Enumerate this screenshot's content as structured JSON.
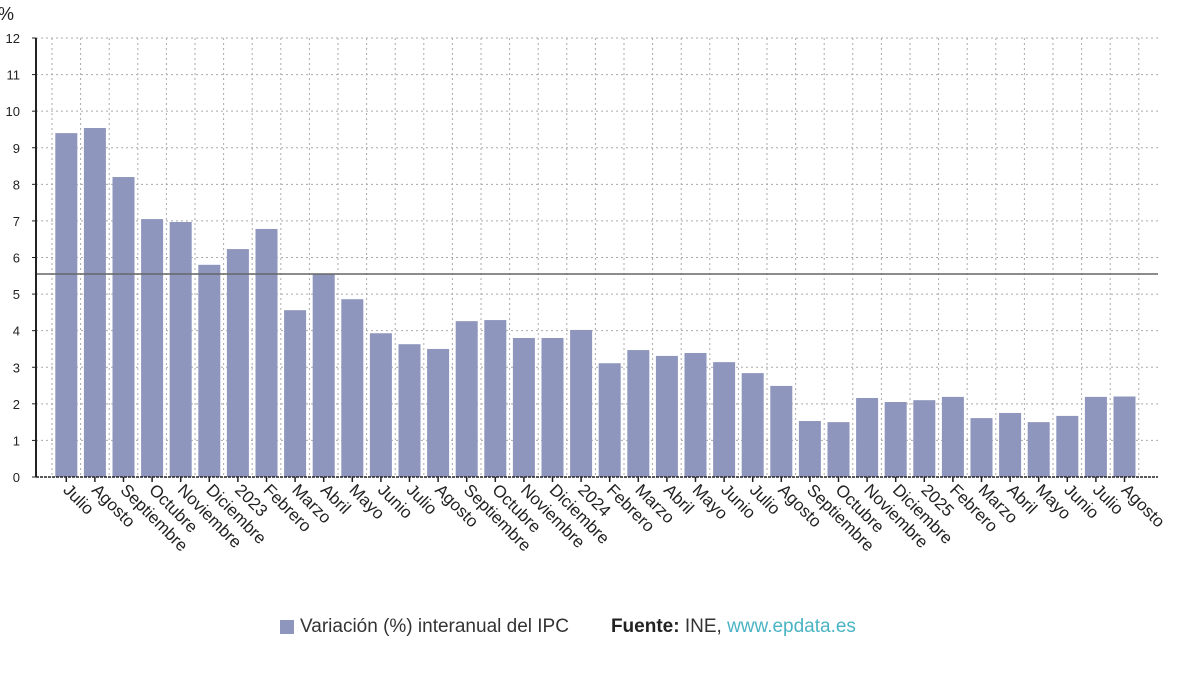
{
  "chart_data": {
    "type": "bar",
    "ylabel": "%",
    "ylim": [
      0,
      12
    ],
    "yticks": [
      0,
      1,
      2,
      3,
      4,
      5,
      6,
      7,
      8,
      9,
      10,
      11,
      12
    ],
    "grid": true,
    "legend_position": "bottom",
    "reference_line": 5.55,
    "bar_color": "#8e96bd",
    "categories": [
      "Julio",
      "Agosto",
      "Septiembre",
      "Octubre",
      "Noviembre",
      "Diciembre",
      "2023",
      "Febrero",
      "Marzo",
      "Abril",
      "Mayo",
      "Junio",
      "Julio",
      "Agosto",
      "Septiembre",
      "Octubre",
      "Noviembre",
      "Diciembre",
      "2024",
      "Febrero",
      "Marzo",
      "Abril",
      "Mayo",
      "Junio",
      "Julio",
      "Agosto",
      "Septiembre",
      "Octubre",
      "Noviembre",
      "Diciembre",
      "2025",
      "Febrero",
      "Marzo",
      "Abril",
      "Mayo",
      "Junio",
      "Julio",
      "Agosto"
    ],
    "series": [
      {
        "name": "Variación (%) interanual del IPC",
        "values": [
          9.4,
          9.54,
          8.2,
          7.05,
          6.97,
          5.8,
          6.23,
          6.78,
          4.56,
          5.55,
          4.86,
          3.93,
          3.63,
          3.5,
          4.26,
          4.29,
          3.8,
          3.8,
          4.02,
          3.11,
          3.47,
          3.31,
          3.39,
          3.14,
          2.84,
          2.49,
          1.53,
          1.5,
          2.16,
          2.05,
          2.1,
          2.19,
          1.61,
          1.75,
          1.5,
          1.67,
          2.19,
          2.2
        ]
      }
    ]
  },
  "legend": {
    "series_label": "Variación (%) interanual del IPC",
    "source_label": "Fuente:",
    "source_name": " INE, ",
    "source_url": "www.epdata.es"
  }
}
